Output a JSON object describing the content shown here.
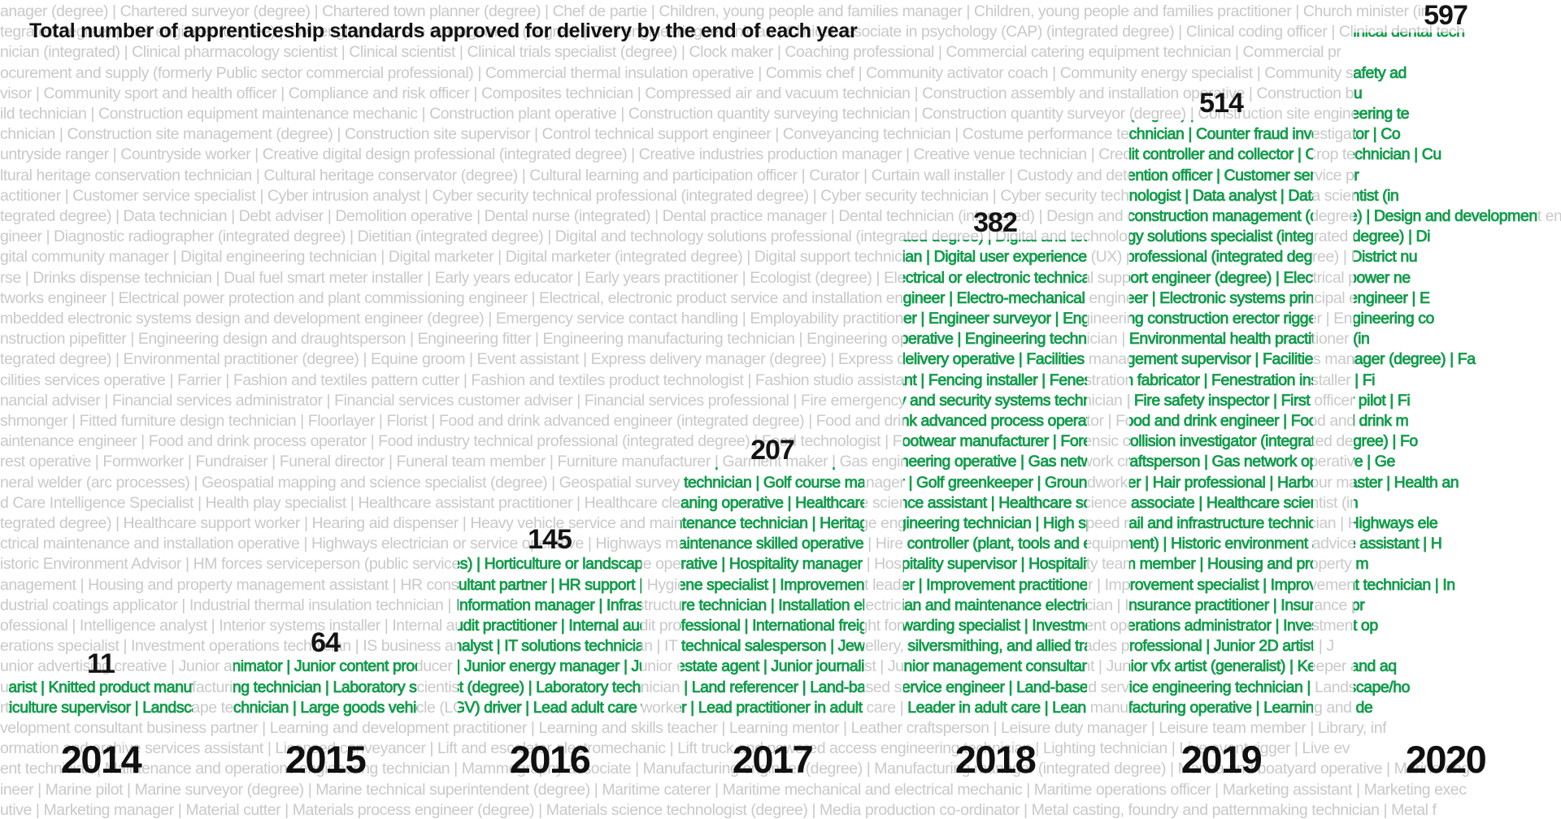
{
  "title": "Total number of apprenticeship standards approved for delivery by the end of each year",
  "chart_data": {
    "type": "bar",
    "title": "Total number of apprenticeship standards approved for delivery by the end of each year",
    "categories": [
      "2014",
      "2015",
      "2016",
      "2017",
      "2018",
      "2019",
      "2020"
    ],
    "values": [
      11,
      64,
      145,
      207,
      382,
      514,
      597
    ],
    "xlabel": "",
    "ylabel": "",
    "ylim": [
      0,
      597
    ],
    "legend": "none",
    "grid": false,
    "layout_hint": "bars drawn as columns of bold green text rising from the year labels; background is the full alphabetical list of apprenticeship standards in light gray; data labels (counts) sit above each column"
  },
  "columns": [
    {
      "year": "2014",
      "count": "11"
    },
    {
      "year": "2015",
      "count": "64"
    },
    {
      "year": "2016",
      "count": "145"
    },
    {
      "year": "2017",
      "count": "207"
    },
    {
      "year": "2018",
      "count": "382"
    },
    {
      "year": "2019",
      "count": "514"
    },
    {
      "year": "2020",
      "count": "597"
    }
  ],
  "colors": {
    "highlight_green": "#129C4B",
    "background_text_gray": "#c9c9c9",
    "label_black": "#141414",
    "background": "#ffffff"
  },
  "standards_text_rows": [
    "anager (degree) | Chartered surveyor (degree) | Chartered town planner (degree) | Chef de partie | Children, young people and families manager | Children, young people and families practitioner | Church minister (in",
    "tegrated degree) | Civil engineer (degree) | Civil engineering site management (degree) | Civil engineering technician | Clinical associate in psychology (CAP) (integrated degree) | Clinical coding officer | Clinical dental tech",
    "nician (integrated) | Clinical pharmacology scientist | Clinical scientist | Clinical trials specialist (degree) | Clock maker | Coaching professional | Commercial catering equipment technician | Commercial pr",
    "ocurement and supply (formerly Public sector commercial professional) | Commercial thermal insulation operative | Commis chef | Community activator coach | Community energy specialist | Community safety ad",
    "visor | Community sport and health officer | Compliance and risk officer | Composites technician | Compressed air and vacuum technician | Construction assembly and installation operative | Construction bu",
    "ild technician | Construction equipment maintenance mechanic | Construction plant operative | Construction quantity surveying technician | Construction quantity surveyor (degree) | Construction site engineering te",
    "chnician | Construction site management (degree) | Construction site supervisor | Control technical support engineer | Conveyancing technician | Costume performance technician | Counter fraud investigator | Co",
    "untryside ranger | Countryside worker | Creative digital design professional (integrated degree) | Creative industries production manager | Creative venue technician | Credit controller and collector | Crop technician | Cu",
    "ltural heritage conservation technician | Cultural heritage conservator (degree) | Cultural learning and participation officer | Curator | Curtain wall installer | Custody and detention officer | Customer service pr",
    "actitioner | Customer service specialist | Cyber intrusion analyst | Cyber security technical professional (integrated degree) | Cyber security technician | Cyber security technologist | Data analyst | Data scientist (in",
    "tegrated degree) | Data technician | Debt adviser | Demolition operative | Dental nurse (integrated) | Dental practice manager | Dental technician (integrated) | Design and construction management (degree) | Design and development en",
    "gineer | Diagnostic radiographer (integrated degree) | Dietitian (integrated degree) | Digital and technology solutions professional (integrated degree) | Digital and technology solutions specialist (integrated degree) | Di",
    "gital community manager | Digital engineering technician | Digital marketer | Digital marketer (integrated degree) | Digital support technician | Digital user experience (UX) professional (integrated degree) | District nu",
    "rse | Drinks dispense technician | Dual fuel smart meter installer | Early years educator | Early years practitioner | Ecologist (degree) | Electrical or electronic technical support engineer (degree) | Electrical power ne",
    "tworks engineer | Electrical power protection and plant commissioning engineer | Electrical, electronic product service and installation engineer | Electro-mechanical engineer | Electronic systems principal engineer | E",
    "mbedded electronic systems design and development engineer (degree) | Emergency service contact handling | Employability practitioner | Engineer surveyor | Engineering construction erector rigger | Engineering co",
    "nstruction pipefitter | Engineering design and draughtsperson | Engineering fitter | Engineering manufacturing technician | Engineering operative | Engineering technician | Environmental health practitioner (in",
    "tegrated degree) | Environmental practitioner (degree) | Equine groom | Event assistant | Express delivery manager (degree) | Express delivery operative | Facilities management supervisor | Facilities manager (degree) | Fa",
    "cilities services operative | Farrier | Fashion and textiles pattern cutter | Fashion and textiles product technologist | Fashion studio assistant | Fencing installer | Fenestration fabricator | Fenestration installer | Fi",
    "nancial adviser | Financial services administrator | Financial services customer adviser | Financial services professional | Fire emergency and security systems technician | Fire safety inspector | First officer pilot | Fi",
    "shmonger | Fitted furniture design technician | Floorlayer | Florist | Food and drink advanced engineer (integrated degree) | Food and drink advanced process operator | Food and drink engineer | Food and drink m",
    "aintenance engineer | Food and drink process operator | Food industry technical professional (integrated degree) | Food technologist | Footwear manufacturer | Forensic collision investigator (integrated degree) | Fo",
    "rest operative | Formworker | Fundraiser | Funeral director | Funeral team member | Furniture manufacturer | Garment maker | Gas engineering operative | Gas network craftsperson | Gas network operative | Ge",
    "neral welder (arc processes) | Geospatial mapping and science specialist (degree) | Geospatial survey technician | Golf course manager | Golf greenkeeper | Groundworker | Hair professional | Harbour master | Health an",
    "d Care Intelligence Specialist | Health play specialist | Healthcare assistant practitioner | Healthcare cleaning operative | Healthcare science assistant | Healthcare science associate | Healthcare scientist (in",
    "tegrated degree) | Healthcare support worker | Hearing aid dispenser | Heavy vehicle service and maintenance technician | Heritage engineering technician | High speed rail and infrastructure technician | Highways ele",
    "ctrical maintenance and installation operative | Highways electrician or service operative | Highways maintenance skilled operative | Hire controller (plant, tools and equipment) | Historic environment advice assistant | H",
    "istoric Environment Advisor | HM forces serviceperson (public services) | Horticulture or landscape operative | Hospitality manager | Hospitality supervisor | Hospitality team member | Housing and property m",
    "anagement | Housing and property management assistant | HR consultant partner | HR support | Hygiene specialist | Improvement leader | Improvement practitioner | Improvement specialist | Improvement technician | In",
    "dustrial coatings applicator | Industrial thermal insulation technician | Information manager | Infrastructure technician | Installation electrician and maintenance electrician | Insurance practitioner | Insurance pr",
    "ofessional | Intelligence analyst | Interior systems installer | Internal audit practitioner | Internal audit professional | International freight forwarding specialist | Investment operations administrator | Investment op",
    "erations specialist | Investment operations technician | IS business analyst | IT solutions technician | IT technical salesperson | Jewellery, silversmithing, and allied trades professional | Junior 2D artist | J",
    "unior advertising creative | Junior animator | Junior content producer | Junior energy manager | Junior estate agent | Junior journalist | Junior management consultant | Junior vfx artist (generalist) | Keeper and aq",
    "uarist | Knitted product manufacturing technician | Laboratory scientist (degree) | Laboratory technician | Land referencer | Land-based service engineer | Land-based service engineering technician | Landscape/ho",
    "rticulture supervisor | Landscape technician | Large goods vehicle (LGV) driver | Lead adult care worker | Lead practitioner in adult care | Leader in adult care | Lean manufacturing operative | Learning and de",
    "velopment consultant business partner | Learning and development practitioner | Learning and skills teacher | Learning mentor | Leather craftsperson | Leisure duty manager | Leisure team member | Library, inf",
    "ormation and archive services assistant | Licensed conveyancer | Lift and escalator electromechanic | Lift truck and powered access engineering technician | Lighting technician | Live event rigger | Live ev",
    "ent technician | Maintenance and operations engineering technician | Mammography associate | Manufacturing engineer (degree) | Manufacturing manager (integrated degree) | Marina and boatyard operative | Marine eng",
    "ineer | Marine pilot | Marine surveyor (degree) | Marine technical superintendent (degree) | Maritime caterer | Maritime mechanical and electrical mechanic | Maritime operations officer | Marketing assistant | Marketing exec",
    "utive | Marketing manager | Material cutter | Materials process engineer (degree) | Materials science technologist (degree) | Media production co-ordinator | Metal casting, foundry and patternmaking technician | Metal f"
  ]
}
